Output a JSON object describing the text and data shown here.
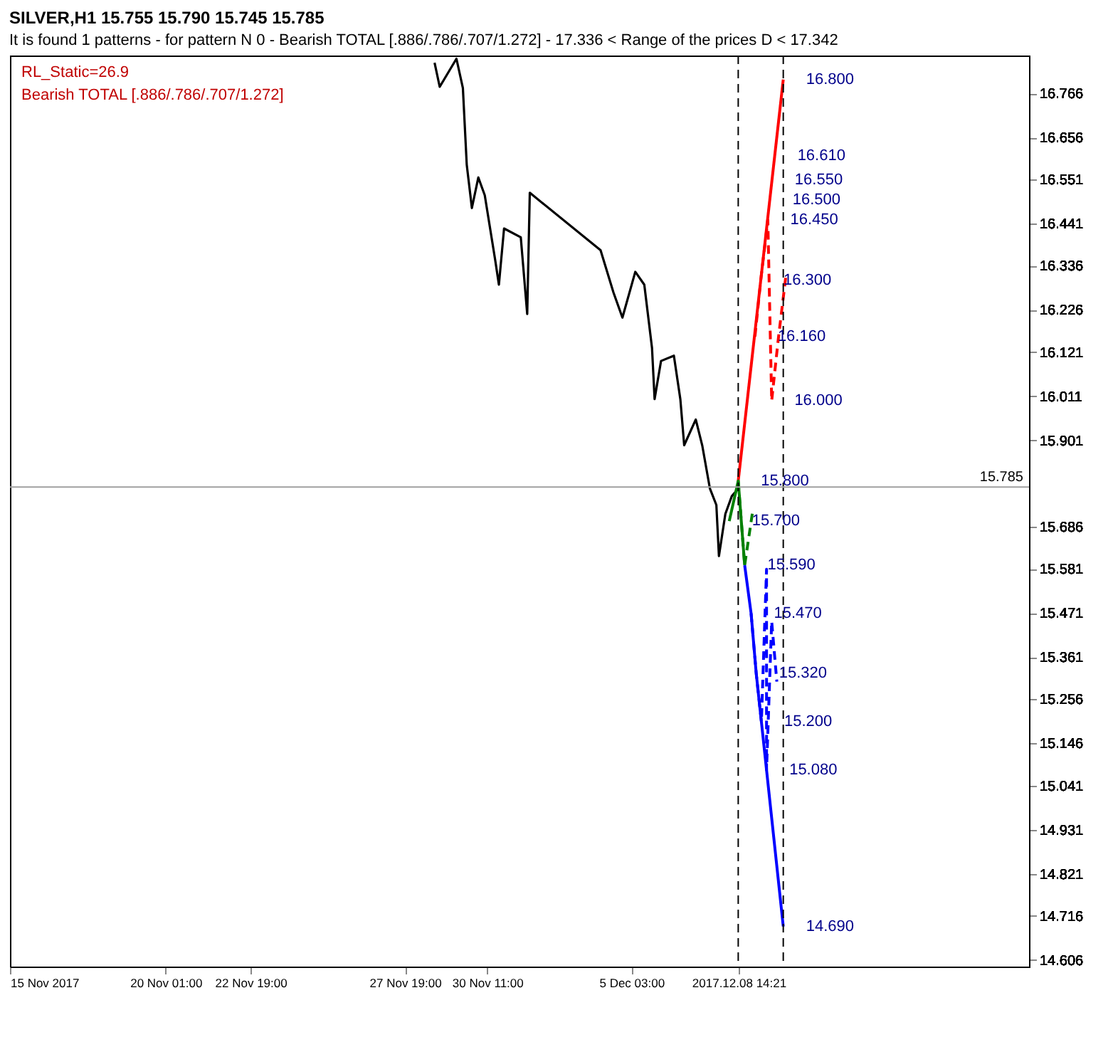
{
  "chart_data": {
    "type": "line",
    "title": "SILVER,H1  15.755 15.790 15.745 15.785",
    "subtitle": "It is found 1 patterns  -  for pattern N 0 - Bearish TOTAL [.886/.786/.707/1.272] - 17.336 < Range of the prices D < 17.342",
    "xlim": [
      "2017-11-15T00:00",
      "2017-12-18T00:00"
    ],
    "ylim": [
      14.59,
      16.86
    ],
    "xticks": [
      {
        "value": "2017-11-15T00:00",
        "label": "15 Nov 2017"
      },
      {
        "value": "2017-11-20T01:00",
        "label": "20 Nov 01:00"
      },
      {
        "value": "2017-11-22T19:00",
        "label": "22 Nov 19:00"
      },
      {
        "value": "2017-11-27T19:00",
        "label": "27 Nov 19:00"
      },
      {
        "value": "2017-11-30T11:00",
        "label": "30 Nov 11:00"
      },
      {
        "value": "2017-12-05T03:00",
        "label": "5 Dec 03:00"
      },
      {
        "value": "2017-12-08T14:21",
        "label": "2017.12.08 14:21"
      }
    ],
    "yticks": [
      14.606,
      14.716,
      14.821,
      14.931,
      15.041,
      15.146,
      15.256,
      15.361,
      15.471,
      15.581,
      15.686,
      15.901,
      16.011,
      16.121,
      16.226,
      16.336,
      16.441,
      16.551,
      16.656,
      16.766
    ],
    "grid": false,
    "series": [
      {
        "color": "#000000",
        "line_style": "solid",
        "x": [
          "2017-11-28T18:00",
          "2017-11-28T22:00",
          "2017-11-29T11:00",
          "2017-11-29T16:00",
          "2017-11-29T19:00",
          "2017-11-29T23:00",
          "2017-11-30T04:00",
          "2017-11-30T09:00",
          "2017-11-30T17:00",
          "2017-11-30T20:00",
          "2017-12-01T00:00",
          "2017-12-01T13:00",
          "2017-12-01T18:00",
          "2017-12-01T20:00",
          "2017-12-04T03:00",
          "2017-12-04T13:00",
          "2017-12-04T20:00",
          "2017-12-05T06:00",
          "2017-12-05T13:00",
          "2017-12-05T19:00",
          "2017-12-05T21:00",
          "2017-12-06T02:00",
          "2017-12-06T12:00",
          "2017-12-06T17:00",
          "2017-12-06T20:00",
          "2017-12-07T05:00",
          "2017-12-07T10:00",
          "2017-12-07T16:00",
          "2017-12-07T21:00",
          "2017-12-07T23:00",
          "2017-12-08T04:00",
          "2017-12-08T09:00",
          "2017-12-08T14:00"
        ],
        "values": [
          16.842,
          16.782,
          16.852,
          16.779,
          16.588,
          16.48,
          16.556,
          16.512,
          16.353,
          16.289,
          16.429,
          16.407,
          16.216,
          16.518,
          16.375,
          16.27,
          16.207,
          16.321,
          16.289,
          16.131,
          16.004,
          16.099,
          16.112,
          16.004,
          15.889,
          15.953,
          15.889,
          15.781,
          15.74,
          15.613,
          15.718,
          15.762,
          15.781
        ]
      },
      {
        "color": "#ff0000",
        "line_style": "solid",
        "x": [
          "2017-12-08T14:00",
          "2017-12-10T01:00"
        ],
        "values": [
          15.8,
          16.8
        ]
      },
      {
        "color": "#ff0000",
        "line_style": "dashed",
        "x": [
          "2017-12-09T03:00",
          "2017-12-09T16:00",
          "2017-12-09T07:30",
          "2017-12-09T21:00",
          "2017-12-09T13:00",
          "2017-12-10T03:00"
        ],
        "values": [
          16.16,
          16.0,
          16.3,
          16.15,
          16.45,
          16.31
        ]
      },
      {
        "color": "#008000",
        "line_style": "solid",
        "x": [
          "2017-12-08T14:00",
          "2017-12-08T07:00",
          "2017-12-08T19:00"
        ],
        "values": [
          15.8,
          15.7,
          15.59
        ]
      },
      {
        "color": "#008000",
        "line_style": "dashed",
        "x": [
          "2017-12-08T19:00",
          "2017-12-09T01:00",
          "2017-12-08T14:00"
        ],
        "values": [
          15.59,
          15.72,
          15.8
        ]
      },
      {
        "color": "#0000ff",
        "line_style": "solid",
        "x": [
          "2017-12-08T19:00",
          "2017-12-09T00:00",
          "2017-12-09T04:00",
          "2017-12-09T08:00",
          "2017-12-09T12:00",
          "2017-12-10T01:00"
        ],
        "values": [
          15.59,
          15.47,
          15.32,
          15.2,
          15.08,
          14.69
        ]
      },
      {
        "color": "#0000ff",
        "line_style": "dashed",
        "x": [
          "2017-12-09T00:00",
          "2017-12-09T12:00",
          "2017-12-09T04:00",
          "2017-12-09T16:00",
          "2017-12-09T08:00",
          "2017-12-09T20:00",
          "2017-12-09T12:00"
        ],
        "values": [
          15.47,
          15.58,
          15.32,
          15.45,
          15.2,
          15.3,
          15.08
        ]
      }
    ],
    "ref_lines": [
      {
        "axis": "x",
        "value": "2017-12-08T14:00",
        "label": null,
        "color": "#000000",
        "line_style": "dashed"
      },
      {
        "axis": "x",
        "value": "2017-12-10T01:00",
        "label": null,
        "color": "#000000",
        "line_style": "dashed"
      },
      {
        "axis": "y",
        "value": 15.785,
        "label": "15.785",
        "color": "#a0a0a0",
        "line_style": "solid"
      }
    ],
    "annotations": [
      "RL_Static=26.9",
      "Bearish TOTAL [.886/.786/.707/1.272]",
      {
        "text": "16.800",
        "x": "2017-12-10T01:00",
        "y": 16.8
      },
      {
        "text": "16.610",
        "x": "2017-12-09T18:21",
        "y": 16.61
      },
      {
        "text": "16.550",
        "x": "2017-12-09T16:15",
        "y": 16.55
      },
      {
        "text": "16.500",
        "x": "2017-12-09T14:30",
        "y": 16.5
      },
      {
        "text": "16.450",
        "x": "2017-12-09T12:45",
        "y": 16.45
      },
      {
        "text": "16.300",
        "x": "2017-12-09T07:30",
        "y": 16.3
      },
      {
        "text": "16.160",
        "x": "2017-12-09T03:00",
        "y": 16.16
      },
      {
        "text": "16.000",
        "x": "2017-12-09T16:00",
        "y": 16.0
      },
      {
        "text": "15.800",
        "x": "2017-12-08T14:00",
        "y": 15.8
      },
      {
        "text": "15.700",
        "x": "2017-12-08T07:00",
        "y": 15.7
      },
      {
        "text": "15.590",
        "x": "2017-12-08T19:00",
        "y": 15.59
      },
      {
        "text": "15.470",
        "x": "2017-12-09T00:00",
        "y": 15.47
      },
      {
        "text": "15.320",
        "x": "2017-12-09T04:00",
        "y": 15.32
      },
      {
        "text": "15.200",
        "x": "2017-12-09T08:00",
        "y": 15.2
      },
      {
        "text": "15.080",
        "x": "2017-12-09T12:00",
        "y": 15.08
      },
      {
        "text": "14.690",
        "x": "2017-12-10T01:00",
        "y": 14.69
      }
    ]
  }
}
